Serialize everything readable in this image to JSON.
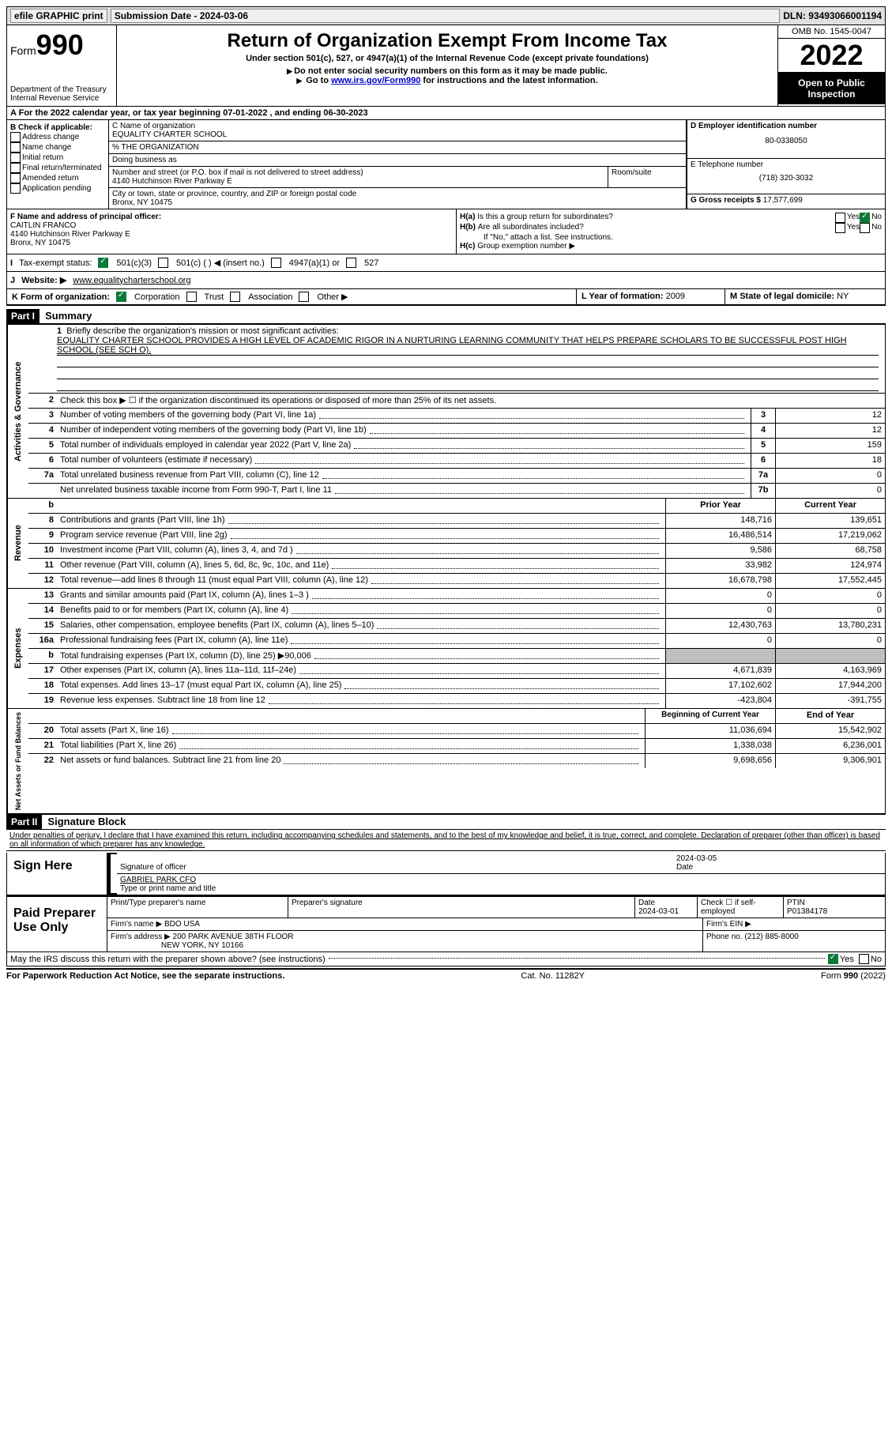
{
  "topbar": {
    "efile": "efile GRAPHIC print",
    "submission": "Submission Date - 2024-03-06",
    "dln": "DLN: 93493066001194"
  },
  "header": {
    "form_label": "Form",
    "form_num": "990",
    "dept": "Department of the Treasury",
    "irs": "Internal Revenue Service",
    "title": "Return of Organization Exempt From Income Tax",
    "subtitle": "Under section 501(c), 527, or 4947(a)(1) of the Internal Revenue Code (except private foundations)",
    "note1": "Do not enter social security numbers on this form as it may be made public.",
    "note2_pre": "Go to ",
    "note2_link": "www.irs.gov/Form990",
    "note2_post": " for instructions and the latest information.",
    "omb": "OMB No. 1545-0047",
    "year": "2022",
    "open": "Open to Public Inspection"
  },
  "a": "For the 2022 calendar year, or tax year beginning 07-01-2022    , and ending 06-30-2023",
  "b": {
    "label": "B Check if applicable:",
    "items": [
      "Address change",
      "Name change",
      "Initial return",
      "Final return/terminated",
      "Amended return",
      "Application pending"
    ]
  },
  "c": {
    "name_label": "C Name of organization",
    "name": "EQUALITY CHARTER SCHOOL",
    "care_of": "% THE ORGANIZATION",
    "dba_label": "Doing business as",
    "street_label": "Number and street (or P.O. box if mail is not delivered to street address)",
    "suite_label": "Room/suite",
    "street": "4140 Hutchinson River Parkway E",
    "city_label": "City or town, state or province, country, and ZIP or foreign postal code",
    "city": "Bronx, NY  10475"
  },
  "d": {
    "label": "D Employer identification number",
    "value": "80-0338050"
  },
  "e": {
    "label": "E Telephone number",
    "value": "(718) 320-3032"
  },
  "g": {
    "label": "G Gross receipts $",
    "value": "17,577,699"
  },
  "f": {
    "label": "F  Name and address of principal officer:",
    "name": "CAITLIN FRANCO",
    "street": "4140 Hutchinson River Parkway E",
    "city": "Bronx, NY  10475"
  },
  "h": {
    "a": "Is this a group return for subordinates?",
    "b": "Are all subordinates included?",
    "note": "If \"No,\" attach a list. See instructions.",
    "c": "Group exemption number ▶"
  },
  "i": {
    "label": "Tax-exempt status:",
    "opts": [
      "501(c)(3)",
      "501(c) (   ) ◀ (insert no.)",
      "4947(a)(1) or",
      "527"
    ]
  },
  "j": {
    "label": "Website: ▶",
    "value": "www.equalitycharterschool.org"
  },
  "k": {
    "label": "K Form of organization:",
    "opts": [
      "Corporation",
      "Trust",
      "Association",
      "Other ▶"
    ]
  },
  "l": {
    "label": "L Year of formation:",
    "value": "2009"
  },
  "m": {
    "label": "M State of legal domicile:",
    "value": "NY"
  },
  "part1": {
    "tag": "Part I",
    "title": "Summary"
  },
  "summary": {
    "line1_label": "Briefly describe the organization's mission or most significant activities:",
    "mission": "EQUALITY CHARTER SCHOOL PROVIDES A HIGH LEVEL OF ACADEMIC RIGOR IN A NURTURING LEARNING COMMUNITY THAT HELPS PREPARE SCHOLARS TO BE SUCCESSFUL POST HIGH SCHOOL (SEE SCH O).",
    "line2": "Check this box ▶ ☐ if the organization discontinued its operations or disposed of more than 25% of its net assets.",
    "lines_single": [
      {
        "n": "3",
        "t": "Number of voting members of the governing body (Part VI, line 1a)",
        "box": "3",
        "v": "12"
      },
      {
        "n": "4",
        "t": "Number of independent voting members of the governing body (Part VI, line 1b)",
        "box": "4",
        "v": "12"
      },
      {
        "n": "5",
        "t": "Total number of individuals employed in calendar year 2022 (Part V, line 2a)",
        "box": "5",
        "v": "159"
      },
      {
        "n": "6",
        "t": "Total number of volunteers (estimate if necessary)",
        "box": "6",
        "v": "18"
      },
      {
        "n": "7a",
        "t": "Total unrelated business revenue from Part VIII, column (C), line 12",
        "box": "7a",
        "v": "0"
      },
      {
        "n": "",
        "t": "Net unrelated business taxable income from Form 990-T, Part I, line 11",
        "box": "7b",
        "v": "0"
      }
    ],
    "hdr_prior": "Prior Year",
    "hdr_current": "Current Year",
    "revenue": [
      {
        "n": "8",
        "t": "Contributions and grants (Part VIII, line 1h)",
        "p": "148,716",
        "c": "139,651"
      },
      {
        "n": "9",
        "t": "Program service revenue (Part VIII, line 2g)",
        "p": "16,486,514",
        "c": "17,219,062"
      },
      {
        "n": "10",
        "t": "Investment income (Part VIII, column (A), lines 3, 4, and 7d )",
        "p": "9,586",
        "c": "68,758"
      },
      {
        "n": "11",
        "t": "Other revenue (Part VIII, column (A), lines 5, 6d, 8c, 9c, 10c, and 11e)",
        "p": "33,982",
        "c": "124,974"
      },
      {
        "n": "12",
        "t": "Total revenue—add lines 8 through 11 (must equal Part VIII, column (A), line 12)",
        "p": "16,678,798",
        "c": "17,552,445"
      }
    ],
    "expenses": [
      {
        "n": "13",
        "t": "Grants and similar amounts paid (Part IX, column (A), lines 1–3 )",
        "p": "0",
        "c": "0"
      },
      {
        "n": "14",
        "t": "Benefits paid to or for members (Part IX, column (A), line 4)",
        "p": "0",
        "c": "0"
      },
      {
        "n": "15",
        "t": "Salaries, other compensation, employee benefits (Part IX, column (A), lines 5–10)",
        "p": "12,430,763",
        "c": "13,780,231"
      },
      {
        "n": "16a",
        "t": "Professional fundraising fees (Part IX, column (A), line 11e)",
        "p": "0",
        "c": "0"
      },
      {
        "n": "b",
        "t": "Total fundraising expenses (Part IX, column (D), line 25) ▶90,006",
        "p": "",
        "c": "",
        "shaded": true
      },
      {
        "n": "17",
        "t": "Other expenses (Part IX, column (A), lines 11a–11d, 11f–24e)",
        "p": "4,671,839",
        "c": "4,163,969"
      },
      {
        "n": "18",
        "t": "Total expenses. Add lines 13–17 (must equal Part IX, column (A), line 25)",
        "p": "17,102,602",
        "c": "17,944,200"
      },
      {
        "n": "19",
        "t": "Revenue less expenses. Subtract line 18 from line 12",
        "p": "-423,804",
        "c": "-391,755"
      }
    ],
    "hdr_begin": "Beginning of Current Year",
    "hdr_end": "End of Year",
    "net": [
      {
        "n": "20",
        "t": "Total assets (Part X, line 16)",
        "p": "11,036,694",
        "c": "15,542,902"
      },
      {
        "n": "21",
        "t": "Total liabilities (Part X, line 26)",
        "p": "1,338,038",
        "c": "6,236,001"
      },
      {
        "n": "22",
        "t": "Net assets or fund balances. Subtract line 21 from line 20",
        "p": "9,698,656",
        "c": "9,306,901"
      }
    ]
  },
  "vtabs": {
    "gov": "Activities & Governance",
    "rev": "Revenue",
    "exp": "Expenses",
    "net": "Net Assets or Fund Balances"
  },
  "part2": {
    "tag": "Part II",
    "title": "Signature Block"
  },
  "decl": "Under penalties of perjury, I declare that I have examined this return, including accompanying schedules and statements, and to the best of my knowledge and belief, it is true, correct, and complete. Declaration of preparer (other than officer) is based on all information of which preparer has any knowledge.",
  "sign": {
    "here": "Sign Here",
    "sig_label": "Signature of officer",
    "date_label": "Date",
    "date": "2024-03-05",
    "name": "GABRIEL PARK CFO",
    "name_label": "Type or print name and title"
  },
  "prep": {
    "title": "Paid Preparer Use Only",
    "h_name": "Print/Type preparer's name",
    "h_sig": "Preparer's signature",
    "h_date": "Date",
    "date": "2024-03-01",
    "self": "Check ☐ if self-employed",
    "ptin_label": "PTIN",
    "ptin": "P01384178",
    "firm_name_label": "Firm's name    ▶",
    "firm_name": "BDO USA",
    "firm_ein_label": "Firm's EIN ▶",
    "firm_addr_label": "Firm's address ▶",
    "firm_addr1": "200 PARK AVENUE 38TH FLOOR",
    "firm_addr2": "NEW YORK, NY  10166",
    "phone_label": "Phone no.",
    "phone": "(212) 885-8000"
  },
  "discuss": "May the IRS discuss this return with the preparer shown above? (see instructions)",
  "footer": {
    "left": "For Paperwork Reduction Act Notice, see the separate instructions.",
    "mid": "Cat. No. 11282Y",
    "right": "Form 990 (2022)"
  }
}
